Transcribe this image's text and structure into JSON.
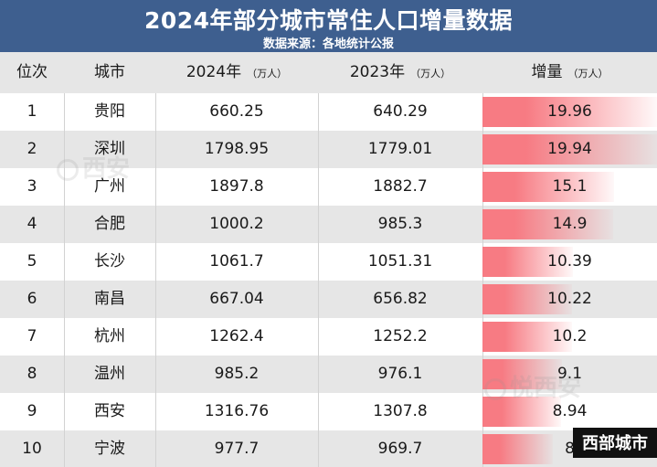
{
  "title": "2024年部分城市常住人口增量数据",
  "subtitle": "数据来源：各地统计公报",
  "columns": {
    "rank": "位次",
    "city": "城市",
    "y2024": "2024年",
    "y2023": "2023年",
    "increase": "增量",
    "unit": "（万人）"
  },
  "watermarks": [
    "西安",
    "悦西安"
  ],
  "corner_label": "西部城市",
  "bar_color": "#f77b83",
  "chart_data": {
    "type": "table",
    "columns": [
      "位次",
      "城市",
      "2024年（万人）",
      "2023年（万人）",
      "增量（万人）"
    ],
    "rows": [
      {
        "rank": "1",
        "city": "贵阳",
        "y2024": "660.25",
        "y2023": "640.29",
        "increase": "19.96",
        "value": 19.96
      },
      {
        "rank": "2",
        "city": "深圳",
        "y2024": "1798.95",
        "y2023": "1779.01",
        "increase": "19.94",
        "value": 19.94
      },
      {
        "rank": "3",
        "city": "广州",
        "y2024": "1897.8",
        "y2023": "1882.7",
        "increase": "15.1",
        "value": 15.1
      },
      {
        "rank": "4",
        "city": "合肥",
        "y2024": "1000.2",
        "y2023": "985.3",
        "increase": "14.9",
        "value": 14.9
      },
      {
        "rank": "5",
        "city": "长沙",
        "y2024": "1061.7",
        "y2023": "1051.31",
        "increase": "10.39",
        "value": 10.39
      },
      {
        "rank": "6",
        "city": "南昌",
        "y2024": "667.04",
        "y2023": "656.82",
        "increase": "10.22",
        "value": 10.22
      },
      {
        "rank": "7",
        "city": "杭州",
        "y2024": "1262.4",
        "y2023": "1252.2",
        "increase": "10.2",
        "value": 10.2
      },
      {
        "rank": "8",
        "city": "温州",
        "y2024": "985.2",
        "y2023": "976.1",
        "increase": "9.1",
        "value": 9.1
      },
      {
        "rank": "9",
        "city": "西安",
        "y2024": "1316.76",
        "y2023": "1307.8",
        "increase": "8.94",
        "value": 8.94
      },
      {
        "rank": "10",
        "city": "宁波",
        "y2024": "977.7",
        "y2023": "969.7",
        "increase": "8",
        "value": 8
      }
    ]
  }
}
